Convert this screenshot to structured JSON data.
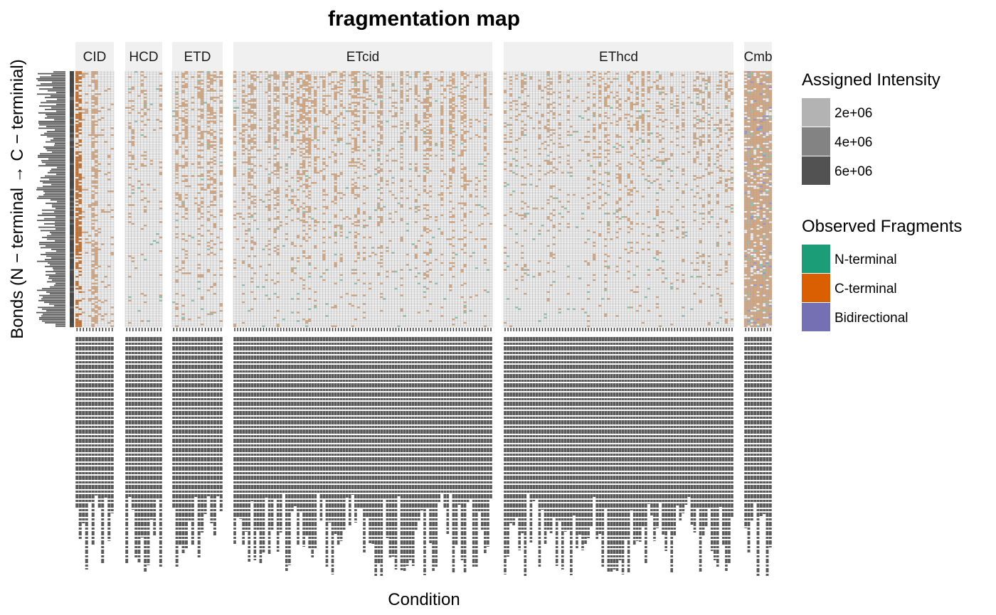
{
  "chart_data": {
    "type": "heatmap",
    "title": "fragmentation map",
    "xlabel": "Condition",
    "ylabel": "Bonds (N − terminal → C − terminial)",
    "facets": [
      {
        "label": "CID",
        "columns": 12,
        "profile": "cid"
      },
      {
        "label": "HCD",
        "columns": 12,
        "profile": "hcd"
      },
      {
        "label": "ETD",
        "columns": 16,
        "profile": "etd"
      },
      {
        "label": "ETcid",
        "columns": 90,
        "profile": "etcid"
      },
      {
        "label": "EThcd",
        "columns": 80,
        "profile": "ethcd"
      },
      {
        "label": "Cmb",
        "columns": 9,
        "profile": "cmb"
      }
    ],
    "rows": 150,
    "legend_intensity": {
      "title": "Assigned Intensity",
      "entries": [
        {
          "label": "2e+06",
          "color": "#b3b3b3"
        },
        {
          "label": "4e+06",
          "color": "#838383"
        },
        {
          "label": "6e+06",
          "color": "#525252"
        }
      ]
    },
    "legend_fragments": {
      "title": "Observed Fragments",
      "entries": [
        {
          "label": "N-terminal",
          "color": "#1b9e77"
        },
        {
          "label": "C-terminal",
          "color": "#d95f02"
        },
        {
          "label": "Bidirectional",
          "color": "#7570b3"
        }
      ]
    },
    "colors": {
      "empty": "#f4f4f4",
      "grid": "#9c9c9c",
      "strip_bg": "#f0f0f0",
      "c_light": "#d7a880",
      "c_strong": "#c86b22",
      "n_light": "#8fc7b2",
      "bi": "#9a97cc",
      "intensity": "#474747"
    }
  }
}
